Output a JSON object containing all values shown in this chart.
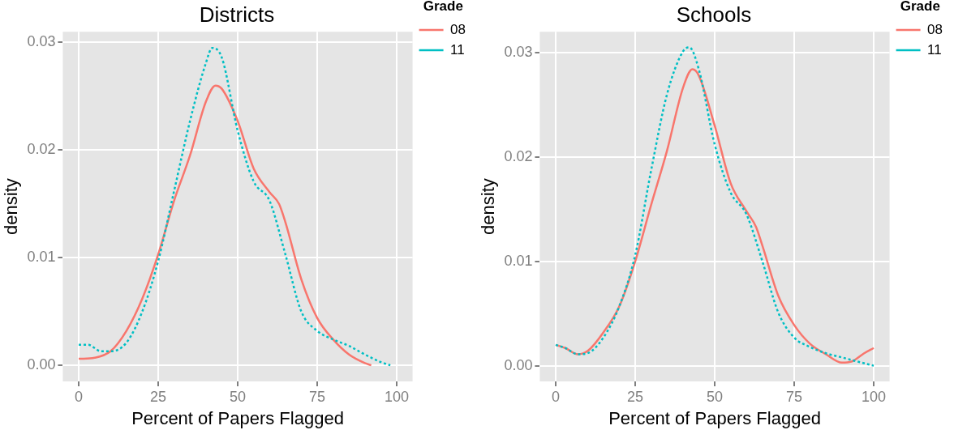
{
  "chart_data": [
    {
      "type": "line",
      "title": "Districts",
      "xlabel": "Percent of Papers Flagged",
      "ylabel": "density",
      "legend_title": "Grade",
      "legend": "top right",
      "grid": true,
      "xlim": [
        -5,
        105
      ],
      "xticks": [
        0,
        25,
        50,
        75,
        100
      ],
      "ylim": [
        -0.0015,
        0.031
      ],
      "yticks": [
        {
          "value": 0,
          "label": "0.00"
        },
        {
          "value": 0.01,
          "label": "0.01"
        },
        {
          "value": 0.02,
          "label": "0.02"
        },
        {
          "value": 0.03,
          "label": "0.03"
        }
      ],
      "series": [
        {
          "name": "08",
          "color": "#f8766d",
          "line_style": "solid",
          "x": [
            0,
            5,
            10,
            15,
            20,
            25,
            30,
            35,
            40,
            43,
            45,
            50,
            55,
            60,
            63,
            65,
            70,
            75,
            80,
            85,
            90,
            92
          ],
          "values": [
            0.0006,
            0.0007,
            0.0013,
            0.0032,
            0.0062,
            0.0103,
            0.0153,
            0.0195,
            0.0245,
            0.026,
            0.0257,
            0.0227,
            0.0183,
            0.0161,
            0.015,
            0.0133,
            0.008,
            0.0044,
            0.0024,
            0.001,
            0.0002,
            0
          ]
        },
        {
          "name": "11",
          "color": "#00bfc4",
          "line_style": "dashed",
          "x": [
            0,
            3,
            7,
            10,
            15,
            20,
            25,
            30,
            35,
            40,
            42,
            45,
            50,
            55,
            60,
            65,
            70,
            75,
            80,
            85,
            90,
            95,
            98
          ],
          "values": [
            0.0019,
            0.0019,
            0.0013,
            0.0013,
            0.0021,
            0.005,
            0.0097,
            0.0162,
            0.0227,
            0.0281,
            0.0295,
            0.0286,
            0.0218,
            0.0171,
            0.0153,
            0.0103,
            0.005,
            0.0032,
            0.0024,
            0.0018,
            0.001,
            0.0003,
            0
          ]
        }
      ]
    },
    {
      "type": "line",
      "title": "Schools",
      "xlabel": "Percent of Papers Flagged",
      "ylabel": "density",
      "legend_title": "Grade",
      "legend": "top right",
      "grid": true,
      "xlim": [
        -5,
        105
      ],
      "xticks": [
        0,
        25,
        50,
        75,
        100
      ],
      "ylim": [
        -0.0015,
        0.032
      ],
      "yticks": [
        {
          "value": 0,
          "label": "0.00"
        },
        {
          "value": 0.01,
          "label": "0.01"
        },
        {
          "value": 0.02,
          "label": "0.02"
        },
        {
          "value": 0.03,
          "label": "0.03"
        }
      ],
      "series": [
        {
          "name": "08",
          "color": "#f8766d",
          "line_style": "solid",
          "x": [
            0,
            3,
            7,
            10,
            15,
            20,
            25,
            30,
            35,
            40,
            43,
            45,
            50,
            55,
            60,
            63,
            65,
            70,
            75,
            80,
            85,
            90,
            93,
            97,
            100
          ],
          "values": [
            0.002,
            0.0017,
            0.0011,
            0.0014,
            0.0032,
            0.0057,
            0.01,
            0.0154,
            0.0206,
            0.0266,
            0.0284,
            0.0278,
            0.023,
            0.0175,
            0.0148,
            0.0133,
            0.0115,
            0.0067,
            0.0039,
            0.0021,
            0.0011,
            0.0003,
            0.0004,
            0.0012,
            0.0017
          ]
        },
        {
          "name": "11",
          "color": "#00bfc4",
          "line_style": "dashed",
          "x": [
            0,
            3,
            7,
            10,
            15,
            20,
            25,
            30,
            35,
            40,
            42,
            45,
            50,
            55,
            60,
            65,
            70,
            75,
            80,
            85,
            90,
            95,
            100
          ],
          "values": [
            0.002,
            0.0017,
            0.0011,
            0.0012,
            0.0027,
            0.0057,
            0.0106,
            0.0187,
            0.026,
            0.0301,
            0.0305,
            0.0284,
            0.0212,
            0.0166,
            0.0145,
            0.01,
            0.0051,
            0.0027,
            0.0018,
            0.0012,
            0.0008,
            0.0004,
            0
          ]
        }
      ]
    }
  ]
}
